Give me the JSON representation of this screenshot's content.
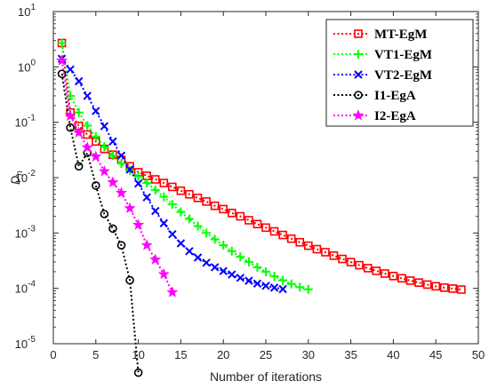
{
  "chart_data": {
    "type": "line",
    "title": "",
    "xlabel": "Number of iterations",
    "ylabel": "D",
    "ylabel_subscript": "n",
    "xlim": [
      0,
      50
    ],
    "ylim_log10": [
      -5,
      1
    ],
    "y_scale": "log",
    "grid": false,
    "legend_position": "top-right",
    "x_ticks": [
      "0",
      "5",
      "10",
      "15",
      "20",
      "25",
      "30",
      "35",
      "40",
      "45",
      "50"
    ],
    "y_ticks": [
      {
        "base": "10",
        "exp": "1"
      },
      {
        "base": "10",
        "exp": "0"
      },
      {
        "base": "10",
        "exp": "-1"
      },
      {
        "base": "10",
        "exp": "-2"
      },
      {
        "base": "10",
        "exp": "-3"
      },
      {
        "base": "10",
        "exp": "-4"
      },
      {
        "base": "10",
        "exp": "-5"
      }
    ],
    "series": [
      {
        "name": "MT-EgM",
        "color": "#ff0000",
        "marker": "square",
        "x": [
          1,
          2,
          3,
          4,
          5,
          6,
          7,
          8,
          9,
          10,
          11,
          12,
          13,
          14,
          15,
          16,
          17,
          18,
          19,
          20,
          21,
          22,
          23,
          24,
          25,
          26,
          27,
          28,
          29,
          30,
          31,
          32,
          33,
          34,
          35,
          36,
          37,
          38,
          39,
          40,
          41,
          42,
          43,
          44,
          45,
          46,
          47,
          48
        ],
        "y": [
          2.7,
          0.15,
          0.086,
          0.06,
          0.045,
          0.033,
          0.026,
          0.021,
          0.016,
          0.0125,
          0.0108,
          0.0093,
          0.008,
          0.0068,
          0.0058,
          0.005,
          0.0043,
          0.0037,
          0.0031,
          0.0027,
          0.0023,
          0.002,
          0.0017,
          0.00145,
          0.00125,
          0.00107,
          0.00092,
          0.00079,
          0.00068,
          0.00059,
          0.00051,
          0.00045,
          0.00039,
          0.00034,
          0.000298,
          0.000262,
          0.000232,
          0.000207,
          0.000185,
          0.000167,
          0.000152,
          0.000138,
          0.000127,
          0.000117,
          0.000109,
          0.000103,
          9.9e-05,
          9.5e-05
        ]
      },
      {
        "name": "VT1-EgM",
        "color": "#00ff00",
        "marker": "plus",
        "x": [
          1,
          2,
          3,
          4,
          5,
          6,
          7,
          8,
          9,
          10,
          11,
          12,
          13,
          14,
          15,
          16,
          17,
          18,
          19,
          20,
          21,
          22,
          23,
          24,
          25,
          26,
          27,
          28,
          29,
          30
        ],
        "y": [
          2.7,
          0.3,
          0.15,
          0.087,
          0.055,
          0.036,
          0.025,
          0.018,
          0.0135,
          0.0105,
          0.008,
          0.006,
          0.0045,
          0.0033,
          0.0024,
          0.0018,
          0.00133,
          0.001,
          0.00077,
          0.0006,
          0.00047,
          0.00037,
          0.0003,
          0.00024,
          0.0002,
          0.000165,
          0.00014,
          0.00012,
          0.000105,
          9.6e-05
        ]
      },
      {
        "name": "VT2-EgM",
        "color": "#0000ff",
        "marker": "x",
        "x": [
          1,
          2,
          3,
          4,
          5,
          6,
          7,
          8,
          9,
          10,
          11,
          12,
          13,
          14,
          15,
          16,
          17,
          18,
          19,
          20,
          21,
          22,
          23,
          24,
          25,
          26,
          27
        ],
        "y": [
          1.4,
          0.9,
          0.55,
          0.3,
          0.16,
          0.085,
          0.045,
          0.025,
          0.014,
          0.0078,
          0.0044,
          0.0025,
          0.0015,
          0.00095,
          0.00065,
          0.00047,
          0.00036,
          0.00029,
          0.00024,
          0.000205,
          0.000178,
          0.000155,
          0.000137,
          0.000122,
          0.000111,
          0.000103,
          9.7e-05
        ]
      },
      {
        "name": "I1-EgA",
        "color": "#000000",
        "marker": "circle",
        "x": [
          1,
          2,
          3,
          4,
          5,
          6,
          7,
          8,
          9,
          10
        ],
        "y": [
          0.75,
          0.08,
          0.016,
          0.028,
          0.0072,
          0.0022,
          0.0012,
          0.0006,
          0.00014,
          3e-06
        ]
      },
      {
        "name": "I2-EgA",
        "color": "#ff00ff",
        "marker": "star",
        "x": [
          1,
          2,
          3,
          4,
          5,
          6,
          7,
          8,
          9,
          10,
          11,
          12,
          13,
          14
        ],
        "y": [
          1.3,
          0.13,
          0.065,
          0.035,
          0.024,
          0.013,
          0.0082,
          0.0053,
          0.0028,
          0.0014,
          0.0006,
          0.00033,
          0.00018,
          8.5e-05
        ]
      }
    ]
  }
}
